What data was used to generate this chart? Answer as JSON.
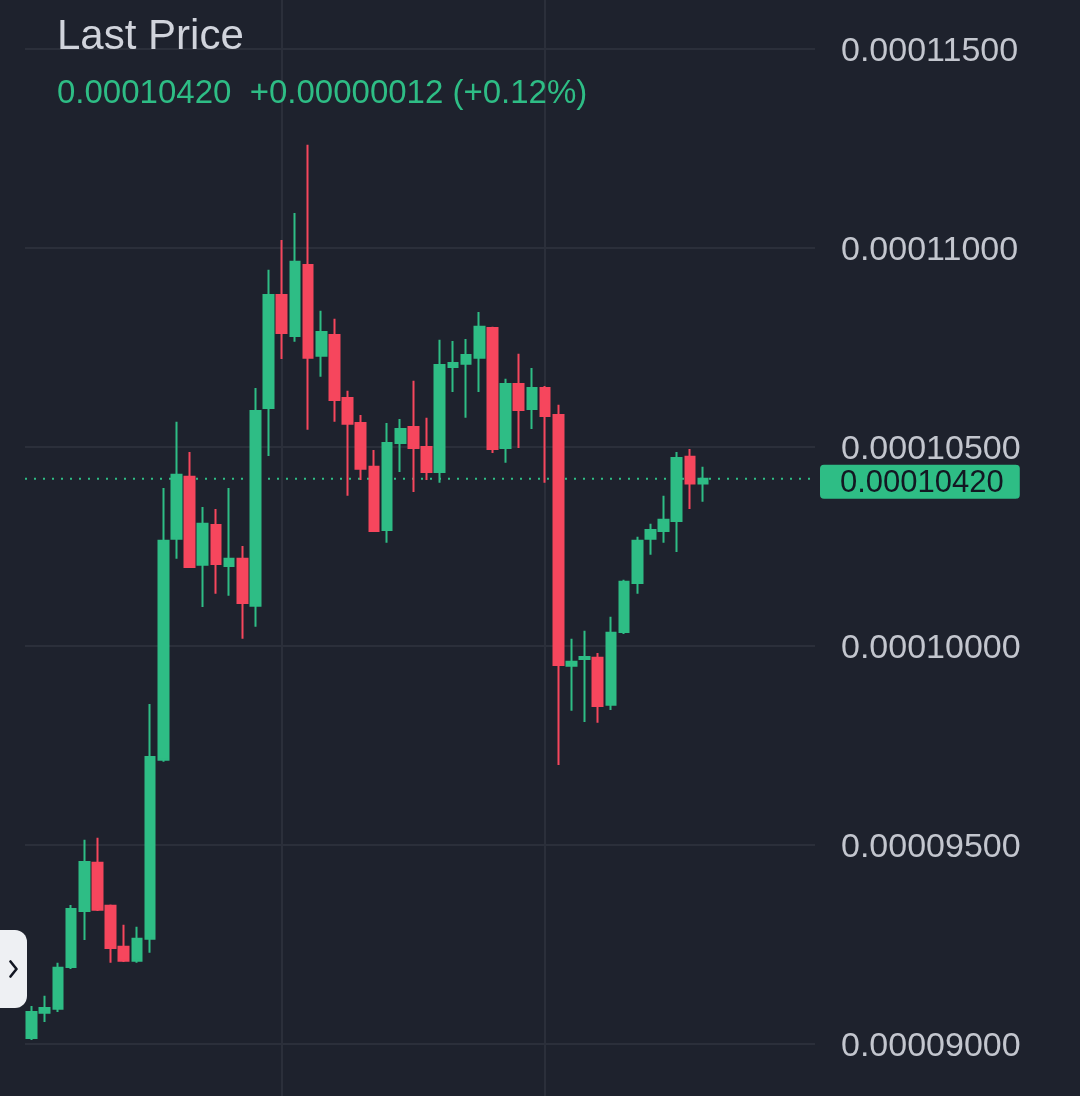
{
  "chart_data": {
    "type": "candlestick",
    "title": "Last Price",
    "subtitle": "0.00010420  +0.00000012 (+0.12%)",
    "categories": [
      null,
      null,
      null,
      null,
      null,
      null,
      null,
      null,
      null,
      null,
      null,
      null,
      null,
      null,
      null,
      null,
      null,
      null,
      null,
      null,
      null,
      null,
      null,
      null,
      null,
      null,
      null,
      null,
      null,
      null,
      null,
      null,
      null,
      null,
      null,
      null,
      null,
      null,
      null,
      null,
      null,
      null,
      null,
      null,
      null,
      null,
      null,
      null,
      null,
      null,
      null,
      null,
      null,
      null,
      null,
      null,
      null,
      null,
      null,
      null
    ],
    "ohlc": [
      [
        9.015e-05,
        9.095e-05,
        9.01e-05,
        9.08e-05
      ],
      [
        9.078e-05,
        9.121e-05,
        9.055e-05,
        9.09e-05
      ],
      [
        9.088e-05,
        9.204e-05,
        9.08e-05,
        9.191e-05
      ],
      [
        9.193e-05,
        9.349e-05,
        9.188e-05,
        9.339e-05
      ],
      [
        9.334e-05,
        9.513e-05,
        9.261e-05,
        9.457e-05
      ],
      [
        9.455e-05,
        9.518e-05,
        9.334e-05,
        9.337e-05
      ],
      [
        9.347e-05,
        9.35e-05,
        9.204e-05,
        9.241e-05
      ],
      [
        9.244e-05,
        9.299e-05,
        9.206e-05,
        9.209e-05
      ],
      [
        9.209e-05,
        9.294e-05,
        9.204e-05,
        9.264e-05
      ],
      [
        9.264e-05,
        9.854e-05,
        9.229e-05,
        9.721e-05
      ],
      [
        9.714e-05,
        0.00010397,
        9.709e-05,
        0.00010264
      ],
      [
        0.00010269,
        0.00010563,
        0.00010219,
        0.0001043
      ],
      [
        0.00010425,
        0.00010487,
        0.00010196,
        0.00010198
      ],
      [
        0.00010204,
        0.00010349,
        0.00010098,
        0.00010307
      ],
      [
        0.00010304,
        0.00010344,
        0.00010131,
        0.00010206
      ],
      [
        0.00010201,
        0.00010397,
        0.00010126,
        0.00010219
      ],
      [
        0.00010219,
        0.00010251,
        0.00010018,
        0.00010108
      ],
      [
        0.00010101,
        0.00010648,
        0.00010048,
        0.0001059
      ],
      [
        0.00010598,
        0.00010945,
        0.00010477,
        0.00010882
      ],
      [
        0.00010882,
        0.0001102,
        0.00010721,
        0.00010786
      ],
      [
        0.00010779,
        0.00011088,
        0.00010764,
        0.00010965
      ],
      [
        0.00010957,
        0.00011259,
        0.00010543,
        0.00010724
      ],
      [
        0.00010729,
        0.00010842,
        0.00010676,
        0.00010789
      ],
      [
        0.00010781,
        0.00010822,
        0.00010563,
        0.00010618
      ],
      [
        0.00010623,
        0.00010641,
        0.00010377,
        0.00010558
      ],
      [
        0.0001056,
        0.0001058,
        0.00010417,
        0.00010445
      ],
      [
        0.0001045,
        0.00010492,
        0.00010287,
        0.00010289
      ],
      [
        0.00010291,
        0.0001056,
        0.00010259,
        0.0001051
      ],
      [
        0.0001051,
        0.0001057,
        0.00010437,
        0.00010545
      ],
      [
        0.0001055,
        0.00010666,
        0.00010387,
        0.00010497
      ],
      [
        0.000105,
        0.00010573,
        0.00010417,
        0.00010437
      ],
      [
        0.00010437,
        0.00010769,
        0.0001041,
        0.00010706
      ],
      [
        0.00010701,
        0.00010766,
        0.00010638,
        0.00010711
      ],
      [
        0.00010709,
        0.00010771,
        0.00010573,
        0.00010731
      ],
      [
        0.00010724,
        0.00010839,
        0.00010638,
        0.00010802
      ],
      [
        0.00010799,
        0.00010802,
        0.00010485,
        0.00010495
      ],
      [
        0.00010497,
        0.00010671,
        0.0001046,
        0.00010658
      ],
      [
        0.00010658,
        0.00010734,
        0.00010497,
        0.00010593
      ],
      [
        0.00010595,
        0.00010698,
        0.00010545,
        0.00010648
      ],
      [
        0.00010648,
        0.00010653,
        0.0001041,
        0.00010578
      ],
      [
        0.0001058,
        0.00010606,
        9.701e-05,
        9.952e-05
      ],
      [
        9.95e-05,
        0.00010018,
        9.837e-05,
        9.96e-05
      ],
      [
        9.967e-05,
        0.00010038,
        9.809e-05,
        9.972e-05
      ],
      [
        9.97e-05,
        9.982e-05,
        9.807e-05,
        9.849e-05
      ],
      [
        9.852e-05,
        0.00010073,
        9.839e-05,
        0.00010033
      ],
      [
        0.00010035,
        0.00010166,
        0.0001003,
        0.00010161
      ],
      [
        0.00010158,
        0.00010274,
        0.00010131,
        0.00010264
      ],
      [
        0.00010269,
        0.00010307,
        0.00010229,
        0.00010291
      ],
      [
        0.00010289,
        0.00010377,
        0.00010259,
        0.00010317
      ],
      [
        0.00010314,
        0.00010487,
        0.00010236,
        0.00010472
      ],
      [
        0.00010475,
        0.00010495,
        0.00010344,
        0.00010408
      ],
      [
        0.00010408,
        0.0001045,
        0.00010362,
        0.0001042
      ],
      null,
      null,
      null,
      null,
      null,
      null,
      null,
      null
    ],
    "colors": [
      "#2ebd85",
      "#2ebd85",
      "#2ebd85",
      "#2ebd85",
      "#2ebd85",
      "#f6465d",
      "#f6465d",
      "#f6465d",
      "#2ebd85",
      "#2ebd85",
      "#2ebd85",
      "#2ebd85",
      "#f6465d",
      "#2ebd85",
      "#f6465d",
      "#2ebd85",
      "#f6465d",
      "#2ebd85",
      "#2ebd85",
      "#f6465d",
      "#2ebd85",
      "#f6465d",
      "#2ebd85",
      "#f6465d",
      "#f6465d",
      "#f6465d",
      "#f6465d",
      "#2ebd85",
      "#2ebd85",
      "#f6465d",
      "#f6465d",
      "#2ebd85",
      "#2ebd85",
      "#2ebd85",
      "#2ebd85",
      "#f6465d",
      "#2ebd85",
      "#f6465d",
      "#2ebd85",
      "#f6465d",
      "#f6465d",
      "#2ebd85",
      "#2ebd85",
      "#f6465d",
      "#2ebd85",
      "#2ebd85",
      "#2ebd85",
      "#2ebd85",
      "#2ebd85",
      "#2ebd85",
      "#f6465d",
      "#2ebd85",
      null,
      null,
      null,
      null,
      null,
      null,
      null,
      null
    ],
    "ylim": [
      8.869e-05,
      0.00011623
    ],
    "yticks": [
      {
        "value": 9e-05,
        "label": "0.00009000"
      },
      {
        "value": 9.5e-05,
        "label": "0.00009500"
      },
      {
        "value": 0.0001,
        "label": "0.00010000"
      },
      {
        "value": 0.000105,
        "label": "0.00010500"
      },
      {
        "value": 0.00011,
        "label": "0.00011000"
      },
      {
        "value": 0.000115,
        "label": "0.00011500"
      }
    ],
    "grid": true,
    "tick_labels": "y",
    "ref_lines": [
      {
        "axis": "y",
        "value": 0.0001042,
        "label": "0.00010420",
        "color": "#2ebd85",
        "line_style": "dotted"
      }
    ]
  }
}
